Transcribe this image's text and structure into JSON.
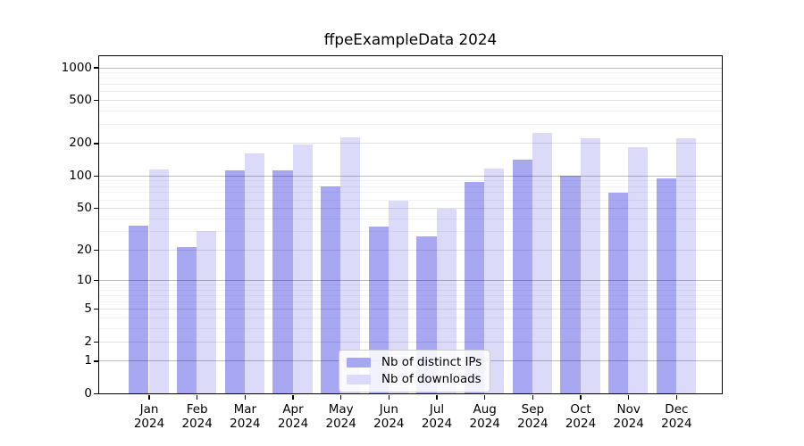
{
  "chart_data": {
    "type": "bar",
    "title": "ffpeExampleData 2024",
    "categories": [
      "Jan 2024",
      "Feb 2024",
      "Mar 2024",
      "Apr 2024",
      "May 2024",
      "Jun 2024",
      "Jul 2024",
      "Aug 2024",
      "Sep 2024",
      "Oct 2024",
      "Nov 2024",
      "Dec 2024"
    ],
    "series": [
      {
        "name": "Nb of distinct IPs",
        "color": "#a8a8f2",
        "values": [
          34,
          21,
          112,
          112,
          79,
          33,
          27,
          88,
          140,
          100,
          69,
          95
        ]
      },
      {
        "name": "Nb of downloads",
        "color": "#dbdbf9",
        "values": [
          115,
          30,
          160,
          196,
          224,
          58,
          49,
          116,
          250,
          221,
          182,
          222
        ]
      }
    ],
    "xlabel": "",
    "ylabel": "",
    "y_scale": "log10(1+x)",
    "y_ticks": [
      1000,
      500,
      200,
      100,
      50,
      20,
      10,
      5,
      2,
      1,
      0
    ],
    "y_major_ticks": [
      1,
      10,
      100,
      1000
    ],
    "ylim": [
      0,
      1267
    ],
    "grid": "horizontal",
    "legend_position": "lower center",
    "background_color": "#ffffff",
    "text_color": "#000000"
  }
}
